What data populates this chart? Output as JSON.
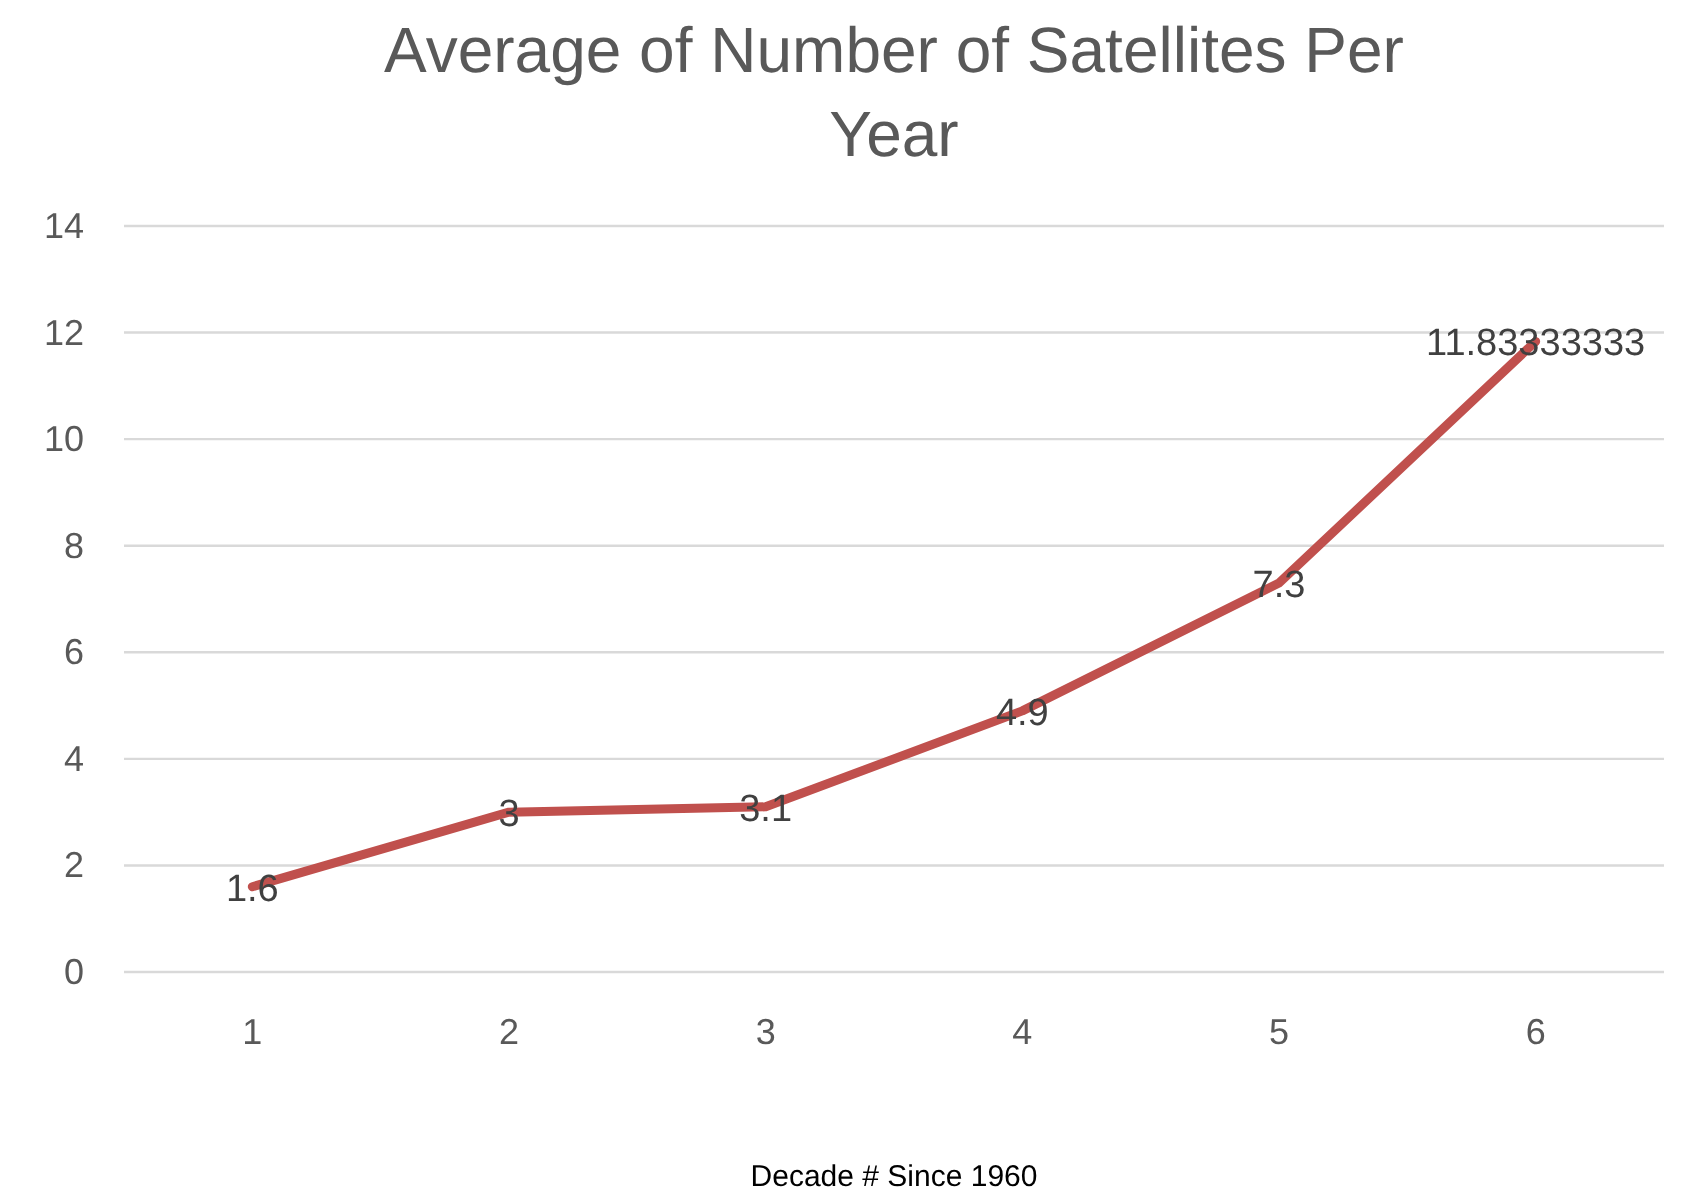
{
  "chart_data": {
    "type": "line",
    "title": "Average of Number of Satellites Per Year",
    "xlabel": "Decade # Since 1960",
    "categories": [
      "1",
      "2",
      "3",
      "4",
      "5",
      "6"
    ],
    "series": [
      {
        "color": "#c0504d",
        "values": [
          1.6,
          3,
          3.1,
          4.9,
          7.3,
          11.83333333
        ]
      }
    ],
    "ylim": [
      0,
      14
    ],
    "yticks": [
      0,
      2,
      4,
      6,
      8,
      10,
      12,
      14
    ],
    "grid": "y",
    "data_labels": true,
    "marker": "none",
    "line_style": "solid"
  }
}
